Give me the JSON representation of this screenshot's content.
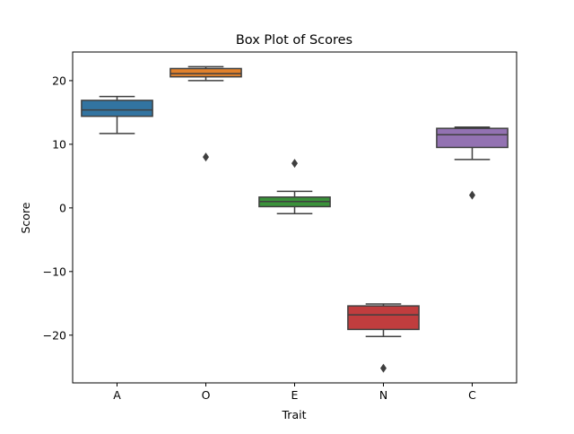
{
  "chart_data": {
    "type": "box",
    "title": "Box Plot of Scores",
    "xlabel": "Trait",
    "ylabel": "Score",
    "ylim": [
      -27.5,
      24.5
    ],
    "yticks": [
      -20,
      -10,
      0,
      10,
      20
    ],
    "ytick_labels": [
      "−20",
      "−10",
      "0",
      "10",
      "20"
    ],
    "grid": false,
    "categories": [
      "A",
      "O",
      "E",
      "N",
      "C"
    ],
    "boxes": [
      {
        "label": "A",
        "color": "#3274a1",
        "whisker_low": 11.7,
        "q1": 14.4,
        "median": 15.4,
        "q3": 16.9,
        "whisker_high": 17.5,
        "outliers": []
      },
      {
        "label": "O",
        "color": "#e1812c",
        "whisker_low": 20.0,
        "q1": 20.6,
        "median": 21.1,
        "q3": 21.9,
        "whisker_high": 22.2,
        "outliers": [
          8.0
        ]
      },
      {
        "label": "E",
        "color": "#3a923a",
        "whisker_low": -0.9,
        "q1": 0.2,
        "median": 1.0,
        "q3": 1.7,
        "whisker_high": 2.6,
        "outliers": [
          7.0
        ]
      },
      {
        "label": "N",
        "color": "#c03d3e",
        "whisker_low": -20.2,
        "q1": -19.1,
        "median": -16.8,
        "q3": -15.4,
        "whisker_high": -15.1,
        "outliers": [
          -25.2
        ]
      },
      {
        "label": "C",
        "color": "#9372b2",
        "whisker_low": 7.6,
        "q1": 9.5,
        "median": 11.5,
        "q3": 12.5,
        "whisker_high": 12.7,
        "outliers": [
          2.0
        ]
      }
    ]
  }
}
